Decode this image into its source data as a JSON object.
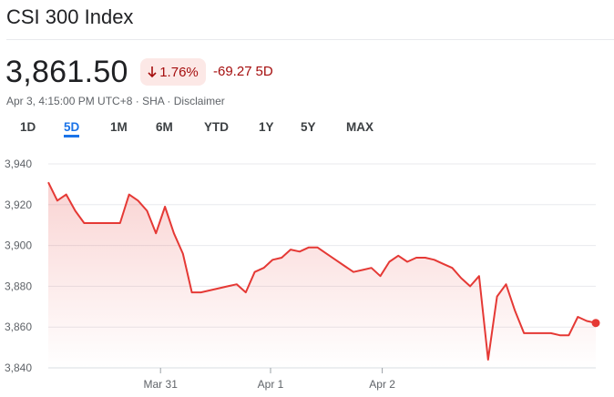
{
  "header": {
    "title": "CSI 300 Index"
  },
  "quote": {
    "price": "3,861.50",
    "pct_change": "1.76%",
    "abs_change": "-69.27",
    "period": "5D",
    "timestamp": "Apr 3, 4:15:00 PM UTC+8",
    "exchange": "SHA",
    "disclaimer": "Disclaimer",
    "sep1": " · ",
    "sep2": " · "
  },
  "tabs": [
    {
      "label": "1D"
    },
    {
      "label": "5D",
      "active": true
    },
    {
      "label": "1M"
    },
    {
      "label": "6M"
    },
    {
      "label": "YTD"
    },
    {
      "label": "1Y"
    },
    {
      "label": "5Y"
    },
    {
      "label": "MAX"
    }
  ],
  "colors": {
    "line": "#e53935",
    "down": "#a50e0e",
    "down_bg": "#fce8e6",
    "accent": "#1a73e8"
  },
  "icons": {
    "change_arrow": "arrow-down-icon"
  },
  "chart_data": {
    "type": "area",
    "title": "",
    "xlabel": "",
    "ylabel": "",
    "ylim": [
      3840,
      3940
    ],
    "yticks": [
      3940,
      3920,
      3900,
      3880,
      3860,
      3840
    ],
    "ytick_labels": [
      "3,940",
      "3,920",
      "3,900",
      "3,880",
      "3,860",
      "3,840"
    ],
    "xtick_labels": [
      "Mar 31",
      "Apr 1",
      "Apr 2"
    ],
    "grid": true,
    "values": [
      3931,
      3922,
      3925,
      3917,
      3911,
      3911,
      3911,
      3911,
      3911,
      3925,
      3922,
      3917,
      3906,
      3919,
      3906,
      3896,
      3877,
      3877,
      3878,
      3879,
      3880,
      3881,
      3877,
      3887,
      3889,
      3893,
      3894,
      3898,
      3897,
      3899,
      3899,
      3896,
      3893,
      3890,
      3887,
      3888,
      3889,
      3885,
      3892,
      3895,
      3892,
      3894,
      3894,
      3893,
      3891,
      3889,
      3884,
      3880,
      3885,
      3844,
      3875,
      3881,
      3868,
      3857,
      3857,
      3857,
      3857,
      3856,
      3856,
      3865,
      3863,
      3862
    ]
  }
}
